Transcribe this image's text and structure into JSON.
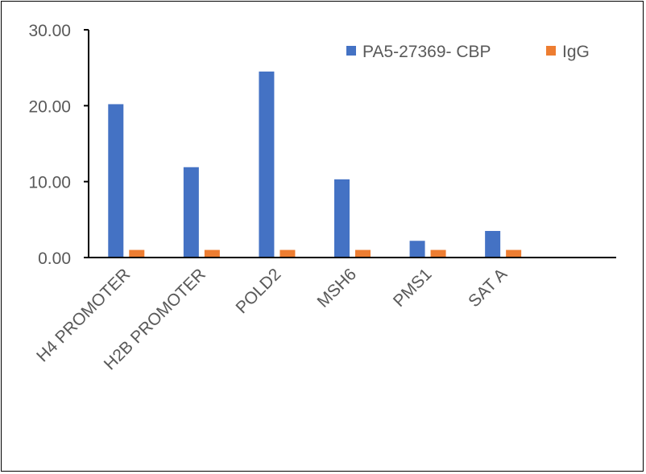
{
  "chart_data": {
    "type": "bar",
    "title": "",
    "xlabel": "",
    "ylabel": "",
    "categories": [
      "H4 PROMOTER",
      "H2B PROMOTER",
      "POLD2",
      "MSH6",
      "PMS1",
      "SAT A"
    ],
    "series": [
      {
        "name": "PA5-27369- CBP",
        "color": "#4472C4",
        "values": [
          20.2,
          11.9,
          24.5,
          10.3,
          2.2,
          3.5
        ]
      },
      {
        "name": "IgG",
        "color": "#ED7D31",
        "values": [
          1.0,
          1.0,
          1.0,
          1.0,
          1.0,
          1.0
        ]
      }
    ],
    "ylim": [
      0,
      30
    ],
    "yticks": [
      "0.00",
      "10.00",
      "20.00",
      "30.00"
    ],
    "ytick_values": [
      0,
      10,
      20,
      30
    ],
    "grid": false,
    "legend_position": "top-right"
  }
}
